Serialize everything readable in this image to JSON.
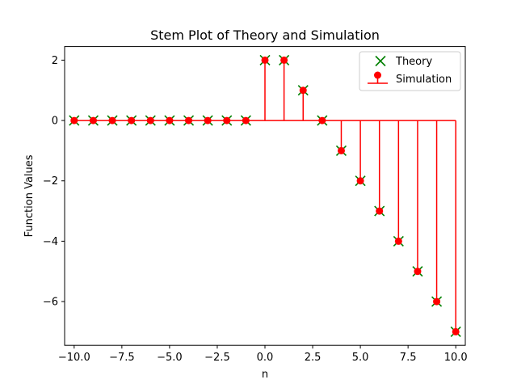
{
  "chart_data": {
    "type": "stem",
    "title": "Stem Plot of Theory and Simulation",
    "xlabel": "n",
    "ylabel": "Function Values",
    "xlim": [
      -10.5,
      10.5
    ],
    "ylim": [
      -7.45,
      2.45
    ],
    "xticks": [
      -10.0,
      -7.5,
      -5.0,
      -2.5,
      0.0,
      2.5,
      5.0,
      7.5,
      10.0
    ],
    "xtick_labels": [
      "−10.0",
      "−7.5",
      "−5.0",
      "−2.5",
      "0.0",
      "2.5",
      "5.0",
      "7.5",
      "10.0"
    ],
    "yticks": [
      2,
      0,
      -2,
      -4,
      -6
    ],
    "ytick_labels": [
      "2",
      "0",
      "−2",
      "−4",
      "−6"
    ],
    "grid": false,
    "legend_position": "top-right",
    "x": [
      -10,
      -9,
      -8,
      -7,
      -6,
      -5,
      -4,
      -3,
      -2,
      -1,
      0,
      1,
      2,
      3,
      4,
      5,
      6,
      7,
      8,
      9,
      10
    ],
    "series": [
      {
        "name": "Theory",
        "marker": "x",
        "color": "#008000",
        "values": [
          0,
          0,
          0,
          0,
          0,
          0,
          0,
          0,
          0,
          0,
          2,
          2,
          1,
          0,
          -1,
          -2,
          -3,
          -4,
          -5,
          -6,
          -7
        ]
      },
      {
        "name": "Simulation",
        "marker": "stem-circle",
        "color": "#ff0000",
        "values": [
          0,
          0,
          0,
          0,
          0,
          0,
          0,
          0,
          0,
          0,
          2,
          2,
          1,
          0,
          -1,
          -2,
          -3,
          -4,
          -5,
          -6,
          -7
        ]
      }
    ]
  }
}
